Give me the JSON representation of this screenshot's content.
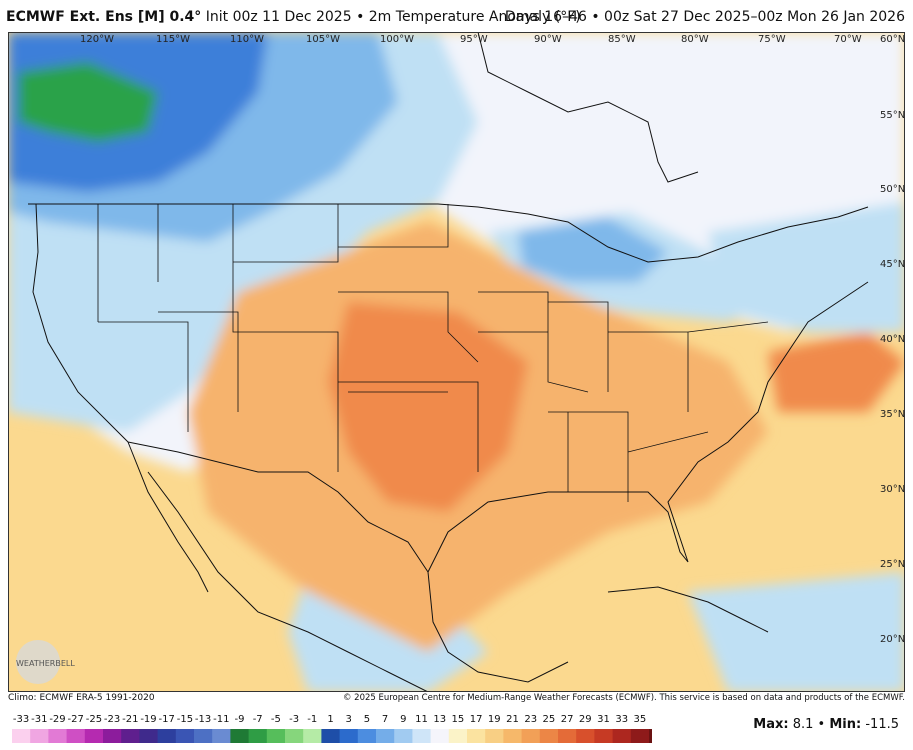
{
  "header": {
    "model_name": "ECMWF Ext. Ens [M] 0.4",
    "degree_sign": "°",
    "init_text": "Init 00z 11 Dec 2025 • 2m Temperature Anomaly (°F)",
    "valid_text": "Days 16–46 • 00z Sat 27 Dec 2025–00z Mon 26 Jan 2026"
  },
  "map": {
    "longitude_labels": [
      "120°W",
      "115°W",
      "110°W",
      "105°W",
      "100°W",
      "95°W",
      "90°W",
      "85°W",
      "80°W",
      "75°W",
      "70°W"
    ],
    "latitude_labels": [
      "60°N",
      "55°N",
      "50°N",
      "45°N",
      "40°N",
      "35°N",
      "30°N",
      "25°N",
      "20°N"
    ],
    "logo_text": "WEATHERBELL",
    "colors": {
      "strong_positive": "#f08a4b",
      "moderate_positive": "#f6b36d",
      "weak_positive": "#fbd98f",
      "neutral": "#f2f4fb",
      "weak_negative": "#bfe0f4",
      "moderate_negative": "#7fb8ea",
      "strong_negative": "#3d7fd9",
      "extreme_negative": "#2aa24a"
    }
  },
  "footer": {
    "climo_text": "Climo: ECMWF ERA-5 1991-2020",
    "copyright_text": "© 2025 European Centre for Medium-Range Weather Forecasts (ECMWF). This service is based on data and products of the ECMWF."
  },
  "colorbar": {
    "ticks": [
      "-33",
      "-31",
      "-29",
      "-27",
      "-25",
      "-23",
      "-21",
      "-19",
      "-17",
      "-15",
      "-13",
      "-11",
      "-9",
      "-7",
      "-5",
      "-3",
      "-1",
      "1",
      "3",
      "5",
      "7",
      "9",
      "11",
      "13",
      "15",
      "17",
      "19",
      "21",
      "23",
      "25",
      "27",
      "29",
      "31",
      "33",
      "35"
    ],
    "colors": [
      "#fbd0ee",
      "#f0a6e2",
      "#e27ad5",
      "#cf4fc4",
      "#b52ab0",
      "#8c1c9c",
      "#5f1f8e",
      "#3f2a8c",
      "#2d3f9e",
      "#3a55b4",
      "#4d70c4",
      "#6a8bd2",
      "#1f7a35",
      "#2f9d45",
      "#56be5b",
      "#86d67c",
      "#b5eba6",
      "#1e4ea8",
      "#2c6bcc",
      "#4c8de0",
      "#74ade9",
      "#a1cbf1",
      "#cfe5f8",
      "#f5f5fb",
      "#fbf3c8",
      "#fbe3a0",
      "#f8cf84",
      "#f6b86a",
      "#f2a057",
      "#ec8646",
      "#e46b38",
      "#d8502c",
      "#c63a24",
      "#ad271f",
      "#8e1a1a",
      "#6a1212"
    ]
  },
  "stats": {
    "max_label": "Max:",
    "max_value": "8.1",
    "separator": "•",
    "min_label": "Min:",
    "min_value": "-11.5"
  }
}
